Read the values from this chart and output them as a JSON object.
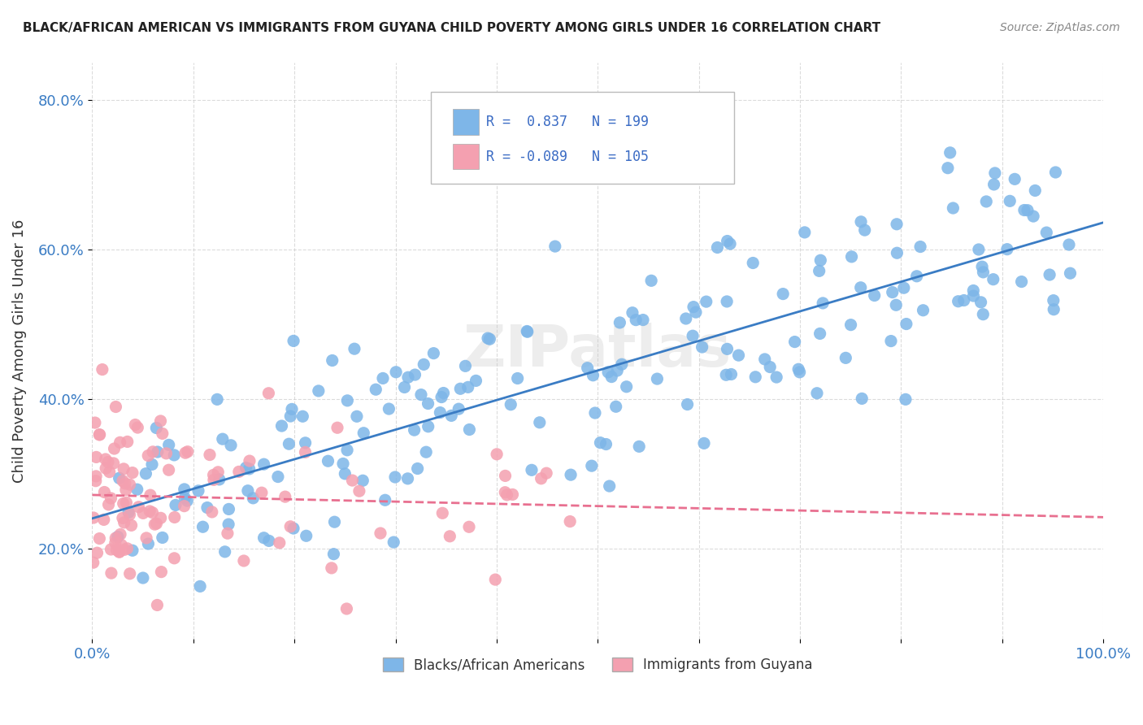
{
  "title": "BLACK/AFRICAN AMERICAN VS IMMIGRANTS FROM GUYANA CHILD POVERTY AMONG GIRLS UNDER 16 CORRELATION CHART",
  "source": "Source: ZipAtlas.com",
  "ylabel": "Child Poverty Among Girls Under 16",
  "xlabel": "",
  "watermark": "ZIPatlas",
  "blue_R": 0.837,
  "blue_N": 199,
  "pink_R": -0.089,
  "pink_N": 105,
  "blue_color": "#7EB6E8",
  "pink_color": "#F4A0B0",
  "blue_line_color": "#3A7CC4",
  "pink_line_color": "#E87090",
  "title_color": "#222222",
  "source_color": "#888888",
  "legend_text_color": "#3A6BC4",
  "axis_label_color": "#3A7CC4",
  "background_color": "#FFFFFF",
  "xlim": [
    0.0,
    1.0
  ],
  "ylim": [
    0.08,
    0.85
  ],
  "blue_seed": 42,
  "pink_seed": 7,
  "legend_R_color": "#000000",
  "legend_N_color": "#3A6BC4"
}
